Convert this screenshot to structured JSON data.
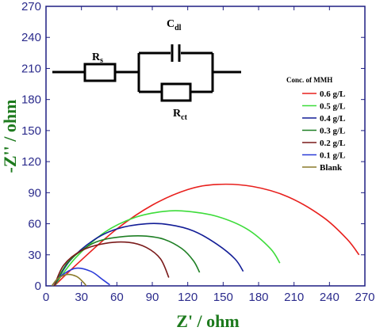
{
  "chart_data": {
    "type": "line",
    "title": "",
    "xlabel": "Z' / ohm",
    "ylabel": "-Z'' / ohm",
    "xlim": [
      0,
      270
    ],
    "ylim": [
      0,
      270
    ],
    "xticks": [
      0,
      30,
      60,
      90,
      120,
      150,
      180,
      210,
      240,
      270
    ],
    "yticks": [
      0,
      30,
      60,
      90,
      120,
      150,
      180,
      210,
      240,
      270
    ],
    "grid": false,
    "legend": {
      "title": "Conc. of MMH",
      "placement": "right"
    },
    "series": [
      {
        "name": "0.6 g/L",
        "color": "#e8201d",
        "x": [
          7,
          30,
          60,
          90,
          120,
          145,
          175,
          205,
          235,
          255,
          265
        ],
        "y": [
          0,
          25,
          55,
          78,
          93,
          98,
          96,
          86,
          66,
          45,
          30
        ]
      },
      {
        "name": "0.5 g/L",
        "color": "#3ddc3a",
        "x": [
          7,
          25,
          50,
          75,
          100,
          120,
          145,
          170,
          190,
          198
        ],
        "y": [
          0,
          27,
          52,
          66,
          72,
          72,
          67,
          55,
          36,
          22
        ]
      },
      {
        "name": "0.4 g/L",
        "color": "#121d96",
        "x": [
          7,
          20,
          40,
          60,
          85,
          105,
          125,
          145,
          160,
          167
        ],
        "y": [
          0,
          24,
          44,
          55,
          60,
          59,
          53,
          40,
          26,
          14
        ]
      },
      {
        "name": "0.3 g/L",
        "color": "#1e7f24",
        "x": [
          7,
          18,
          35,
          50,
          70,
          85,
          100,
          115,
          125,
          130
        ],
        "y": [
          0,
          22,
          38,
          45,
          48,
          48,
          45,
          36,
          24,
          13
        ]
      },
      {
        "name": "0.2 g/L",
        "color": "#7a1a1a",
        "x": [
          7,
          15,
          30,
          50,
          70,
          85,
          97,
          104
        ],
        "y": [
          0,
          20,
          34,
          41,
          42,
          37,
          26,
          8
        ]
      },
      {
        "name": "0.1 g/L",
        "color": "#2b3bd8",
        "x": [
          5,
          12,
          25,
          38,
          48,
          54
        ],
        "y": [
          0,
          9,
          17,
          14,
          6,
          1
        ]
      },
      {
        "name": "Blank",
        "color": "#8a7a2a",
        "x": [
          5,
          10,
          18,
          26,
          32,
          34
        ],
        "y": [
          0,
          7,
          11,
          9,
          3,
          0
        ]
      }
    ],
    "inset": {
      "labels": {
        "rs": "R",
        "rs_sub": "s",
        "cdl": "C",
        "cdl_sub": "dl",
        "rct": "R",
        "rct_sub": "ct"
      }
    }
  }
}
